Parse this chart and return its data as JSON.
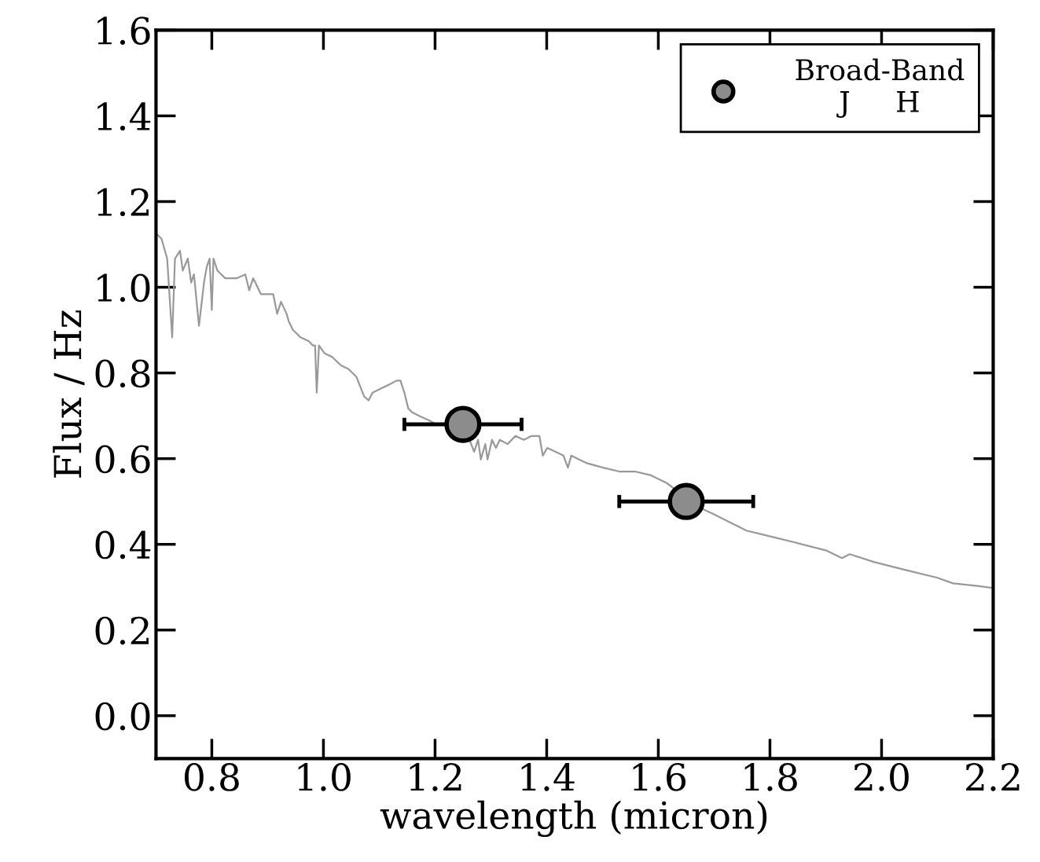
{
  "chart_data": {
    "type": "line",
    "xlabel": "wavelength (micron)",
    "ylabel": "Flux / Hz",
    "xlim": [
      0.7,
      2.2
    ],
    "ylim": [
      -0.1,
      1.6
    ],
    "xticks": [
      0.8,
      {
        "value": 1.0,
        "label": "1.0"
      },
      1.2,
      1.4,
      1.6,
      1.8,
      {
        "value": 2.0,
        "label": "2.0"
      },
      2.2
    ],
    "yticks": [
      {
        "value": 0.0,
        "label": "0.0"
      },
      0.2,
      0.4,
      0.6,
      0.8,
      {
        "value": 1.0,
        "label": "1.0"
      },
      1.2,
      1.4,
      1.6
    ],
    "grid": false,
    "legend": "top right",
    "series": [
      {
        "type": "line",
        "color": "#999999",
        "marker": "none",
        "x": [
          0.703,
          0.71,
          0.72,
          0.729,
          0.734,
          0.743,
          0.748,
          0.757,
          0.763,
          0.768,
          0.777,
          0.786,
          0.791,
          0.796,
          0.8,
          0.803,
          0.81,
          0.817,
          0.824,
          0.831,
          0.845,
          0.86,
          0.867,
          0.874,
          0.888,
          0.9,
          0.91,
          0.917,
          0.924,
          0.934,
          0.938,
          0.945,
          0.952,
          0.959,
          0.974,
          0.981,
          0.985,
          0.988,
          0.992,
          1.002,
          1.016,
          1.031,
          1.045,
          1.059,
          1.073,
          1.081,
          1.088,
          1.102,
          1.116,
          1.131,
          1.138,
          1.145,
          1.152,
          1.159,
          1.173,
          1.188,
          1.202,
          1.216,
          1.23,
          1.237,
          1.245,
          1.259,
          1.27,
          1.277,
          1.282,
          1.29,
          1.294,
          1.302,
          1.309,
          1.316,
          1.33,
          1.344,
          1.359,
          1.373,
          1.387,
          1.393,
          1.401,
          1.416,
          1.43,
          1.438,
          1.444,
          1.458,
          1.473,
          1.501,
          1.53,
          1.558,
          1.587,
          1.615,
          1.644,
          1.672,
          1.701,
          1.729,
          1.758,
          1.786,
          1.815,
          1.843,
          1.9,
          1.929,
          1.943,
          1.986,
          2.043,
          2.1,
          2.128,
          2.171,
          2.2
        ],
        "values": [
          1.122,
          1.113,
          1.067,
          0.883,
          1.067,
          1.085,
          1.039,
          1.067,
          1.011,
          1.03,
          0.91,
          1.011,
          1.048,
          1.067,
          0.947,
          1.067,
          1.039,
          1.03,
          1.021,
          1.021,
          1.021,
          1.03,
          0.993,
          1.021,
          0.984,
          0.984,
          0.984,
          0.938,
          0.966,
          0.938,
          0.92,
          0.901,
          0.892,
          0.883,
          0.874,
          0.864,
          0.864,
          0.754,
          0.864,
          0.846,
          0.837,
          0.818,
          0.809,
          0.791,
          0.745,
          0.736,
          0.754,
          0.763,
          0.772,
          0.782,
          0.782,
          0.754,
          0.717,
          0.708,
          0.699,
          0.69,
          0.68,
          0.68,
          0.708,
          0.699,
          0.671,
          0.653,
          0.616,
          0.644,
          0.598,
          0.634,
          0.598,
          0.644,
          0.625,
          0.644,
          0.634,
          0.653,
          0.644,
          0.653,
          0.653,
          0.607,
          0.625,
          0.616,
          0.607,
          0.579,
          0.607,
          0.598,
          0.589,
          0.579,
          0.57,
          0.57,
          0.561,
          0.543,
          0.515,
          0.487,
          0.469,
          0.451,
          0.432,
          0.423,
          0.414,
          0.405,
          0.386,
          0.368,
          0.377,
          0.359,
          0.34,
          0.322,
          0.309,
          0.303,
          0.298
        ]
      },
      {
        "type": "scatter",
        "name": "Broad-Band\nJ     H",
        "color": "#8c8c8c",
        "marker": "circle",
        "x": [
          1.25,
          1.65
        ],
        "values": [
          0.68,
          0.5
        ],
        "xerrors": [
          0.105,
          0.12
        ]
      }
    ]
  }
}
